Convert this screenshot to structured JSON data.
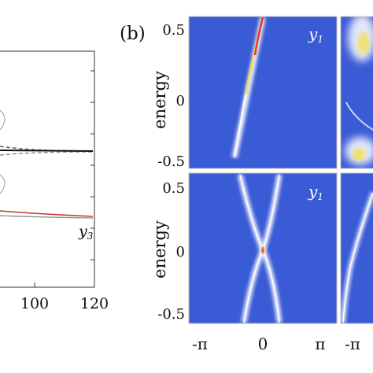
{
  "left_panel": {
    "x_ticks": [
      "100",
      "120"
    ],
    "curve_label": "y",
    "curve_label_sub": "3",
    "label_fragment_1": ")",
    "label_fragment_2": ")",
    "colors": {
      "black_line": "#111111",
      "dashed_line": "#666666",
      "red_line": "#c0392b",
      "gray_line": "#888888"
    }
  },
  "right_panel": {
    "panel_label": "(b)",
    "y_axis_label": "energy",
    "y_ticks_top": [
      "0.5",
      "0",
      "-0.5"
    ],
    "y_ticks_bottom": [
      "0.5",
      "0",
      "-0.5"
    ],
    "x_ticks": [
      "-π",
      "0",
      "π"
    ],
    "x_tick_partial": "-π",
    "top_heatmap_label": "y",
    "top_heatmap_sub": "1",
    "bottom_heatmap_label": "y",
    "bottom_heatmap_sub": "1",
    "colors": {
      "heatmap_bg": "#3a5bd6",
      "band": "#ffffff",
      "hot": "#e8332a",
      "warm": "#f4e04d"
    }
  }
}
